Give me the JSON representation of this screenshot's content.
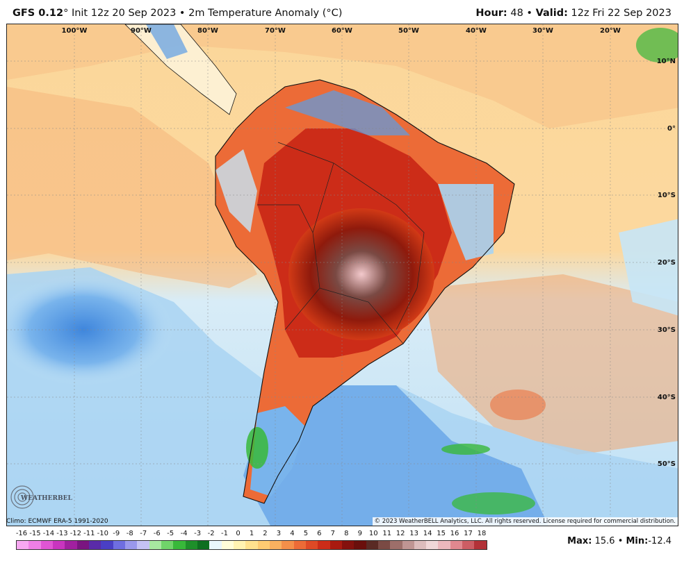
{
  "header": {
    "model": "GFS 0.12",
    "degree": "°",
    "init": "Init 12z 20 Sep 2023",
    "separator": "•",
    "field": "2m Temperature Anomaly (°C)",
    "hour_label": "Hour:",
    "hour_value": "48",
    "valid_label": "Valid:",
    "valid_value": "12z Fri 22 Sep 2023"
  },
  "map": {
    "region": "South America",
    "longitude_labels": [
      "100°W",
      "90°W",
      "80°W",
      "70°W",
      "60°W",
      "50°W",
      "40°W",
      "30°W",
      "20°W"
    ],
    "latitude_labels": [
      "10°N",
      "0°",
      "10°S",
      "20°S",
      "30°S",
      "40°S",
      "50°S"
    ],
    "colors": {
      "ocean_mild_warm": "#fbd79a",
      "ocean_warm": "#f6b67c",
      "land_hot": "#d23a16",
      "land_very_hot": "#8f1a0c",
      "land_extreme": "#5d2a22",
      "land_peak": "#f3c9cc",
      "ocean_cool": "#a9d4f2",
      "ocean_cold": "#5b9ce6",
      "near_zero": "#eef6fb"
    }
  },
  "credits": {
    "climo": "Climo: ECMWF ERA-5 1991-2020",
    "copyright": "© 2023 WeatherBELL Analytics, LLC. All rights reserved. License required for commercial distribution.",
    "logo": "WEATHERBELL"
  },
  "legend": {
    "labels": [
      "-16",
      "-15",
      "-14",
      "-13",
      "-12",
      "-11",
      "-10",
      "-9",
      "-8",
      "-7",
      "-6",
      "-5",
      "-4",
      "-3",
      "-2",
      "-1",
      "0",
      "1",
      "2",
      "3",
      "4",
      "5",
      "6",
      "7",
      "8",
      "9",
      "10",
      "11",
      "12",
      "13",
      "14",
      "15",
      "16",
      "17",
      "18"
    ],
    "colors": [
      "#f7a8f2",
      "#ef7fe6",
      "#e055d4",
      "#c935bf",
      "#a1209f",
      "#7a1580",
      "#5a2ba8",
      "#4a3fc4",
      "#6f6ee0",
      "#9a98ec",
      "#c4c2f4",
      "#a7e8a0",
      "#70d46a",
      "#38b83a",
      "#1e8f2a",
      "#0e6f20",
      "#e9f6fb",
      "#fffdd9",
      "#fff3b2",
      "#ffe28e",
      "#fdcb72",
      "#f9b060",
      "#f48f4a",
      "#ec6b37",
      "#de4a26",
      "#cc2c18",
      "#a91a10",
      "#84110d",
      "#6a0f0c",
      "#5a2a24",
      "#7a4a44",
      "#9d6f6a",
      "#bf9593",
      "#dcbcbc",
      "#f0d7d8",
      "#ecb8bd",
      "#e0888f",
      "#cc5d64",
      "#b23238"
    ]
  },
  "stats": {
    "max_label": "Max:",
    "max_value": "15.6",
    "min_label": "Min:",
    "min_value": "-12.4"
  }
}
